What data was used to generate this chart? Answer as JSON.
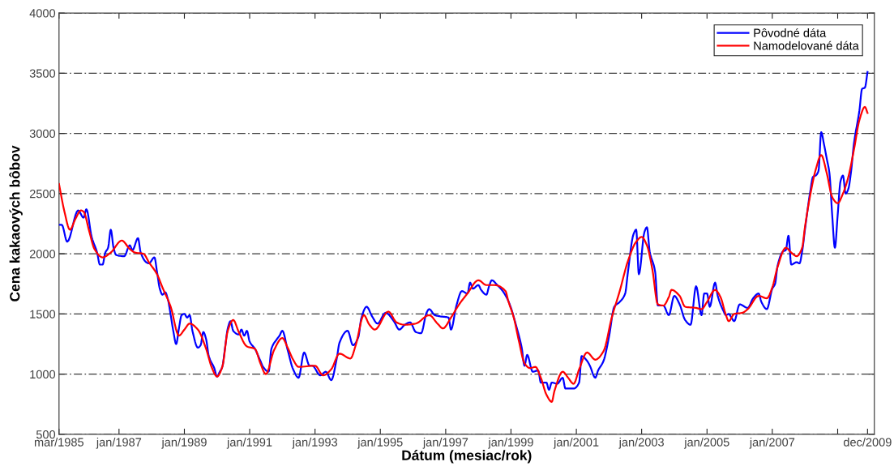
{
  "chart_data": {
    "type": "line",
    "xlabel": "Dátum (mesiac/rok)",
    "ylabel": "Cena kakaových bôbov",
    "xlim": [
      "1985-03",
      "2010-02-15"
    ],
    "ylim": [
      500,
      4000
    ],
    "xticks": [
      {
        "value": "1985-03",
        "label": "mar/1985"
      },
      {
        "value": "1987-01",
        "label": "jan/1987"
      },
      {
        "value": "1989-01",
        "label": "jan/1989"
      },
      {
        "value": "1991-01",
        "label": "jan/1991"
      },
      {
        "value": "1993-01",
        "label": "jan/1993"
      },
      {
        "value": "1995-01",
        "label": "jan/1995"
      },
      {
        "value": "1997-01",
        "label": "jan/1997"
      },
      {
        "value": "1999-01",
        "label": "jan/1999"
      },
      {
        "value": "2001-01",
        "label": "jan/2001"
      },
      {
        "value": "2003-01",
        "label": "jan/2003"
      },
      {
        "value": "2005-01",
        "label": "jan/2005"
      },
      {
        "value": "2007-01",
        "label": "jan/2007"
      },
      {
        "value": "2009-01",
        "label": null
      },
      {
        "value": "2009-12",
        "label": "dec/2009"
      }
    ],
    "yticks": [
      500,
      1000,
      1500,
      2000,
      2500,
      3000,
      3500,
      4000
    ],
    "grid": "y",
    "legend": "top right",
    "series": [
      {
        "name": "Pôvodné dáta",
        "color": "#0000ff",
        "x": [
          "1985-03",
          "1985-04",
          "1985-06",
          "1985-10",
          "1985-12",
          "1986-01",
          "1986-03",
          "1986-05",
          "1986-06",
          "1986-07",
          "1986-08",
          "1986-09",
          "1986-10",
          "1986-11",
          "1986-12",
          "1987-03",
          "1987-05",
          "1987-06",
          "1987-08",
          "1987-09",
          "1987-11",
          "1987-12",
          "1988-02",
          "1988-03",
          "1988-04",
          "1988-05",
          "1988-06",
          "1988-07",
          "1988-08",
          "1988-09",
          "1988-10",
          "1988-11",
          "1988-12",
          "1989-01",
          "1989-02",
          "1989-03",
          "1989-04",
          "1989-06",
          "1989-07",
          "1989-08",
          "1989-09",
          "1989-10",
          "1989-12",
          "1990-01",
          "1990-02",
          "1990-03",
          "1990-04",
          "1990-05",
          "1990-06",
          "1990-07",
          "1990-09",
          "1990-10",
          "1990-11",
          "1990-12",
          "1991-01",
          "1991-03",
          "1991-05",
          "1991-06",
          "1991-08",
          "1991-09",
          "1991-11",
          "1991-12",
          "1992-01",
          "1992-03",
          "1992-05",
          "1992-07",
          "1992-09",
          "1992-11",
          "1992-12",
          "1993-03",
          "1993-05",
          "1993-07",
          "1993-09",
          "1993-10",
          "1994-01",
          "1994-03",
          "1994-05",
          "1994-06",
          "1994-08",
          "1994-10",
          "1994-12",
          "1995-03",
          "1995-06",
          "1995-08",
          "1995-10",
          "1995-12",
          "1996-02",
          "1996-04",
          "1996-06",
          "1996-07",
          "1996-09",
          "1996-11",
          "1997-02",
          "1997-03",
          "1997-05",
          "1997-07",
          "1997-09",
          "1997-10",
          "1997-11",
          "1998-01",
          "1998-02",
          "1998-04",
          "1998-05",
          "1998-06",
          "1998-08",
          "1998-10",
          "1998-12",
          "1999-01",
          "1999-03",
          "1999-05",
          "1999-06",
          "1999-07",
          "1999-09",
          "1999-11",
          "1999-12",
          "2000-02",
          "2000-03",
          "2000-04",
          "2000-06",
          "2000-08",
          "2000-09",
          "2000-12",
          "2001-02",
          "2001-03",
          "2001-05",
          "2001-06",
          "2001-08",
          "2001-09",
          "2001-11",
          "2002-01",
          "2002-03",
          "2002-05",
          "2002-07",
          "2002-08",
          "2002-10",
          "2002-11",
          "2002-12",
          "2003-02",
          "2003-03",
          "2003-04",
          "2003-06",
          "2003-07",
          "2003-09",
          "2003-11",
          "2004-01",
          "2004-03",
          "2004-05",
          "2004-07",
          "2004-09",
          "2004-11",
          "2004-12",
          "2005-01",
          "2005-02",
          "2005-04",
          "2005-05",
          "2005-07",
          "2005-08",
          "2005-09",
          "2005-10",
          "2005-11",
          "2006-01",
          "2006-04",
          "2006-06",
          "2006-08",
          "2006-09",
          "2006-11",
          "2007-01",
          "2007-02",
          "2007-03",
          "2007-05",
          "2007-06",
          "2007-07",
          "2007-08",
          "2007-10",
          "2007-11",
          "2007-12",
          "2008-01",
          "2008-03",
          "2008-04",
          "2008-05",
          "2008-06",
          "2008-07",
          "2008-08",
          "2008-09",
          "2008-10",
          "2008-11",
          "2008-12",
          "2009-01",
          "2009-02",
          "2009-03",
          "2009-04",
          "2009-05",
          "2009-06",
          "2009-07",
          "2009-09",
          "2009-10",
          "2009-11",
          "2009-12"
        ],
        "values": [
          2240,
          2240,
          2100,
          2360,
          2300,
          2370,
          2140,
          2010,
          1910,
          1910,
          2010,
          2050,
          2200,
          2050,
          1990,
          1980,
          2070,
          2030,
          2130,
          2010,
          1930,
          1920,
          1970,
          1850,
          1710,
          1660,
          1680,
          1620,
          1490,
          1350,
          1250,
          1380,
          1490,
          1500,
          1470,
          1490,
          1360,
          1220,
          1240,
          1350,
          1290,
          1150,
          1050,
          980,
          1020,
          1060,
          1220,
          1380,
          1440,
          1360,
          1330,
          1370,
          1320,
          1360,
          1270,
          1210,
          1110,
          1060,
          1020,
          1210,
          1290,
          1320,
          1360,
          1200,
          1040,
          970,
          1180,
          1070,
          1070,
          990,
          1020,
          950,
          1130,
          1260,
          1360,
          1240,
          1310,
          1460,
          1560,
          1480,
          1420,
          1510,
          1440,
          1370,
          1410,
          1430,
          1350,
          1340,
          1510,
          1540,
          1490,
          1480,
          1470,
          1370,
          1570,
          1690,
          1670,
          1760,
          1710,
          1740,
          1700,
          1660,
          1730,
          1780,
          1740,
          1690,
          1610,
          1550,
          1400,
          1220,
          1070,
          1160,
          1020,
          1030,
          930,
          930,
          870,
          930,
          920,
          970,
          880,
          880,
          930,
          1150,
          1110,
          1070,
          970,
          1030,
          1110,
          1310,
          1560,
          1600,
          1670,
          1850,
          2160,
          2200,
          1830,
          2180,
          2220,
          2020,
          1850,
          1570,
          1570,
          1490,
          1650,
          1580,
          1450,
          1410,
          1730,
          1490,
          1670,
          1670,
          1560,
          1760,
          1650,
          1530,
          1490,
          1500,
          1470,
          1440,
          1580,
          1550,
          1630,
          1670,
          1600,
          1540,
          1710,
          1750,
          1900,
          2020,
          2030,
          2150,
          1910,
          1930,
          1920,
          2020,
          2200,
          2520,
          2640,
          2650,
          2690,
          3010,
          2910,
          2790,
          2670,
          2320,
          2050,
          2320,
          2600,
          2650,
          2500,
          2540,
          2690,
          2910,
          3190,
          3370,
          3380,
          3510
        ]
      },
      {
        "name": "Namodelované dáta",
        "color": "#ff0000",
        "x": [
          "1985-03",
          "1985-05",
          "1985-07",
          "1985-09",
          "1985-11",
          "1985-12",
          "1986-02",
          "1986-04",
          "1986-07",
          "1986-10",
          "1987-02",
          "1987-05",
          "1987-07",
          "1987-10",
          "1987-12",
          "1988-03",
          "1988-05",
          "1988-08",
          "1988-11",
          "1989-01",
          "1989-03",
          "1989-06",
          "1989-09",
          "1989-11",
          "1990-01",
          "1990-03",
          "1990-05",
          "1990-07",
          "1990-09",
          "1990-12",
          "1991-03",
          "1991-05",
          "1991-07",
          "1991-10",
          "1992-01",
          "1992-03",
          "1992-05",
          "1992-07",
          "1993-01",
          "1993-04",
          "1993-07",
          "1993-10",
          "1994-02",
          "1994-04",
          "1994-07",
          "1994-09",
          "1994-11",
          "1995-04",
          "1995-07",
          "1995-10",
          "1996-02",
          "1996-07",
          "1996-10",
          "1996-12",
          "1997-03",
          "1997-06",
          "1997-09",
          "1998-01",
          "1998-04",
          "1998-07",
          "1998-11",
          "1998-12",
          "1999-02",
          "1999-04",
          "1999-06",
          "1999-08",
          "1999-10",
          "1999-12",
          "2000-02",
          "2000-04",
          "2000-05",
          "2000-08",
          "2000-10",
          "2000-12",
          "2001-02",
          "2001-05",
          "2001-08",
          "2001-11",
          "2002-02",
          "2002-05",
          "2002-08",
          "2002-11",
          "2003-01",
          "2003-03",
          "2003-05",
          "2003-07",
          "2003-09",
          "2003-11",
          "2003-12",
          "2004-03",
          "2004-05",
          "2004-09",
          "2004-11",
          "2005-01",
          "2005-04",
          "2005-06",
          "2005-08",
          "2005-09",
          "2005-11",
          "2006-02",
          "2006-04",
          "2006-08",
          "2006-11",
          "2007-01",
          "2007-03",
          "2007-06",
          "2007-08",
          "2007-10",
          "2007-12",
          "2008-01",
          "2008-03",
          "2008-05",
          "2008-07",
          "2008-09",
          "2008-11",
          "2009-01",
          "2009-03",
          "2009-05",
          "2009-07",
          "2009-09",
          "2009-11",
          "2009-12"
        ],
        "values": [
          2580,
          2350,
          2200,
          2290,
          2360,
          2350,
          2190,
          2040,
          1970,
          2010,
          2110,
          2040,
          2010,
          2000,
          1930,
          1830,
          1720,
          1560,
          1320,
          1370,
          1420,
          1370,
          1210,
          1060,
          980,
          1060,
          1360,
          1450,
          1350,
          1230,
          1210,
          1090,
          1000,
          1200,
          1300,
          1220,
          1120,
          1060,
          1070,
          990,
          1040,
          1170,
          1130,
          1240,
          1490,
          1410,
          1370,
          1520,
          1430,
          1410,
          1420,
          1490,
          1420,
          1380,
          1470,
          1580,
          1670,
          1780,
          1740,
          1740,
          1690,
          1610,
          1470,
          1270,
          1090,
          1050,
          1060,
          970,
          830,
          770,
          860,
          1020,
          970,
          920,
          1040,
          1180,
          1120,
          1190,
          1470,
          1690,
          1940,
          2100,
          2140,
          2070,
          1870,
          1580,
          1570,
          1640,
          1700,
          1650,
          1560,
          1550,
          1540,
          1600,
          1700,
          1640,
          1490,
          1440,
          1500,
          1510,
          1540,
          1650,
          1630,
          1720,
          1890,
          2050,
          2010,
          1980,
          2050,
          2220,
          2490,
          2700,
          2820,
          2670,
          2470,
          2420,
          2500,
          2640,
          2860,
          3110,
          3220,
          3170
        ]
      }
    ]
  }
}
